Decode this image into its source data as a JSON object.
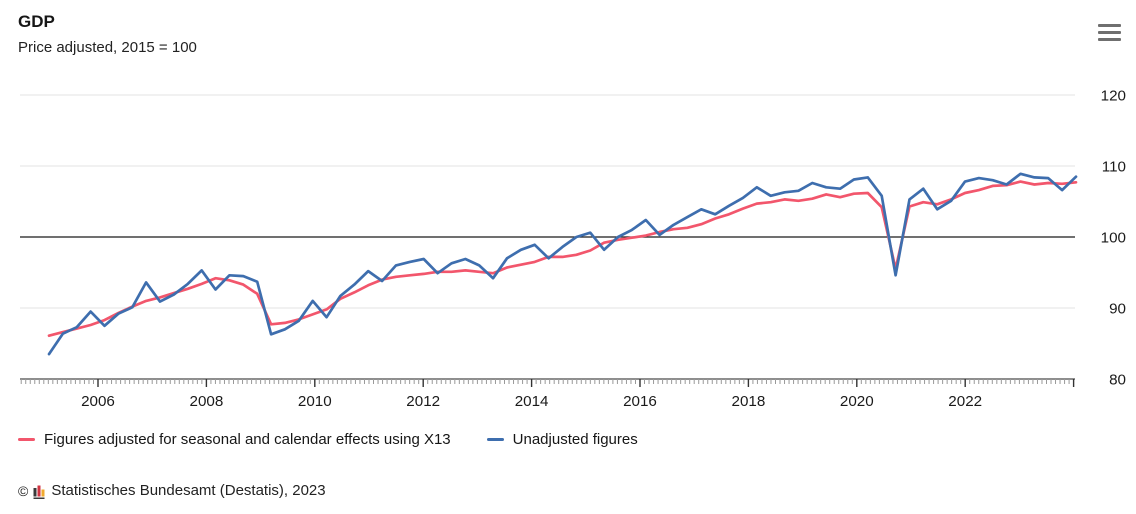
{
  "header": {
    "title": "GDP",
    "subtitle": "Price adjusted, 2015 = 100"
  },
  "menu": {
    "icon": "hamburger-menu-icon"
  },
  "chart_data": {
    "type": "line",
    "title": "GDP",
    "subtitle": "Price adjusted, 2015 = 100",
    "x_unit": "quarter",
    "x_start": "2005-Q1",
    "x_end": "2023-Q3",
    "x_tick_labels": [
      "2006",
      "2008",
      "2010",
      "2012",
      "2014",
      "2016",
      "2018",
      "2020",
      "2022"
    ],
    "y_ticks": [
      80,
      90,
      100,
      110,
      120
    ],
    "ylim": [
      80,
      120
    ],
    "baseline": 100,
    "grid": true,
    "legend_position": "bottom",
    "series": [
      {
        "name": "Figures adjusted for seasonal and calendar effects using X13",
        "color": "#f2566c",
        "values": [
          86.1,
          86.6,
          87.1,
          87.6,
          88.3,
          89.3,
          90.2,
          91.0,
          91.5,
          92.1,
          92.7,
          93.4,
          94.2,
          93.9,
          93.3,
          92.0,
          87.7,
          87.9,
          88.4,
          89.1,
          89.8,
          91.3,
          92.2,
          93.2,
          94.0,
          94.4,
          94.6,
          94.8,
          95.1,
          95.1,
          95.3,
          95.1,
          94.9,
          95.7,
          96.1,
          96.5,
          97.2,
          97.2,
          97.5,
          98.1,
          99.2,
          99.6,
          99.9,
          100.2,
          100.7,
          101.1,
          101.3,
          101.8,
          102.6,
          103.2,
          104.0,
          104.7,
          104.9,
          105.3,
          105.1,
          105.4,
          106.0,
          105.6,
          106.1,
          106.2,
          104.2,
          95.5,
          104.3,
          104.9,
          104.6,
          105.3,
          106.2,
          106.6,
          107.2,
          107.3,
          107.8,
          107.4,
          107.6,
          107.5,
          107.7
        ]
      },
      {
        "name": "Unadjusted figures",
        "color": "#3e6eae",
        "values": [
          83.5,
          86.4,
          87.3,
          89.5,
          87.5,
          89.2,
          90.1,
          93.6,
          90.9,
          91.9,
          93.4,
          95.3,
          92.6,
          94.6,
          94.5,
          93.7,
          86.3,
          87.0,
          88.2,
          91.0,
          88.7,
          91.7,
          93.3,
          95.2,
          93.8,
          96.0,
          96.5,
          96.9,
          94.9,
          96.3,
          96.9,
          96.0,
          94.2,
          97.0,
          98.2,
          98.9,
          97.0,
          98.6,
          100.0,
          100.6,
          98.2,
          100.0,
          101.0,
          102.4,
          100.3,
          101.7,
          102.8,
          103.9,
          103.2,
          104.4,
          105.5,
          107.0,
          105.8,
          106.3,
          106.5,
          107.6,
          107.0,
          106.8,
          108.1,
          108.4,
          105.8,
          94.6,
          105.3,
          106.8,
          103.9,
          105.1,
          107.8,
          108.3,
          108.0,
          107.4,
          108.9,
          108.4,
          108.3,
          106.6,
          108.5
        ]
      }
    ]
  },
  "legend": {
    "items": [
      {
        "label": "Figures adjusted for seasonal and calendar effects using X13"
      },
      {
        "label": "Unadjusted figures"
      }
    ]
  },
  "footer": {
    "prefix": "©",
    "logo": "destatis-bar-chart-logo",
    "source": "Statistisches Bundesamt (Destatis), 2023"
  },
  "colors": {
    "adjusted_line": "#f2566c",
    "unadjusted_line": "#3e6eae",
    "gridline": "#e3e3e3",
    "baseline_100": "#1a1a1a",
    "axis": "#4a4a4a"
  }
}
